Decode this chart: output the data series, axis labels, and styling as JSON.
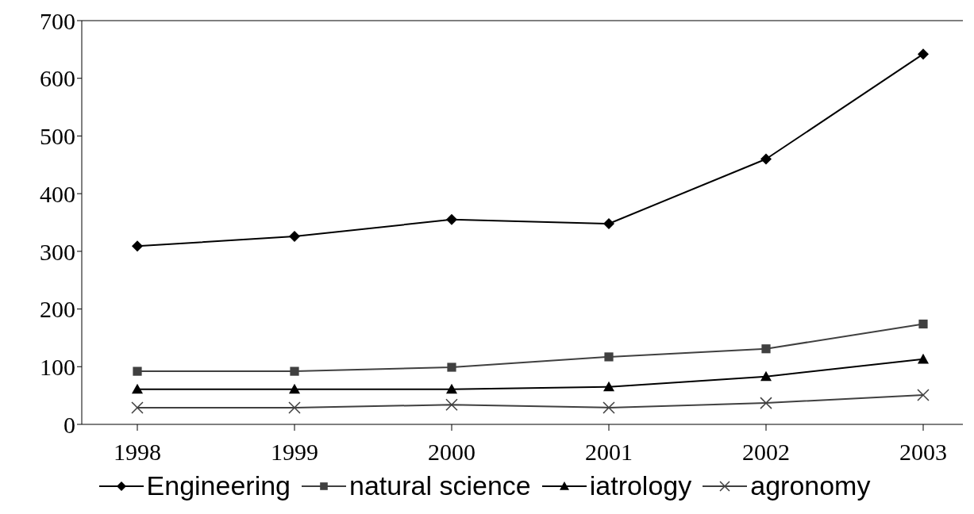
{
  "chart_data": {
    "type": "line",
    "categories": [
      "1998",
      "1999",
      "2000",
      "2001",
      "2002",
      "2003"
    ],
    "series": [
      {
        "name": "Engineering",
        "color": "#000000",
        "marker": "diamond",
        "values": [
          309,
          326,
          355,
          348,
          460,
          642
        ]
      },
      {
        "name": "natural science",
        "color": "#404040",
        "marker": "square",
        "values": [
          92,
          92,
          99,
          117,
          131,
          174
        ]
      },
      {
        "name": "iatrology",
        "color": "#000000",
        "marker": "triangle",
        "values": [
          61,
          61,
          61,
          65,
          83,
          113
        ]
      },
      {
        "name": "agronomy",
        "color": "#404040",
        "marker": "cross",
        "values": [
          29,
          29,
          34,
          29,
          37,
          51
        ]
      }
    ],
    "ylim": [
      0,
      700
    ],
    "yticks": [
      0,
      100,
      200,
      300,
      400,
      500,
      600,
      700
    ],
    "legend": "bottom",
    "line_style": "solid"
  }
}
